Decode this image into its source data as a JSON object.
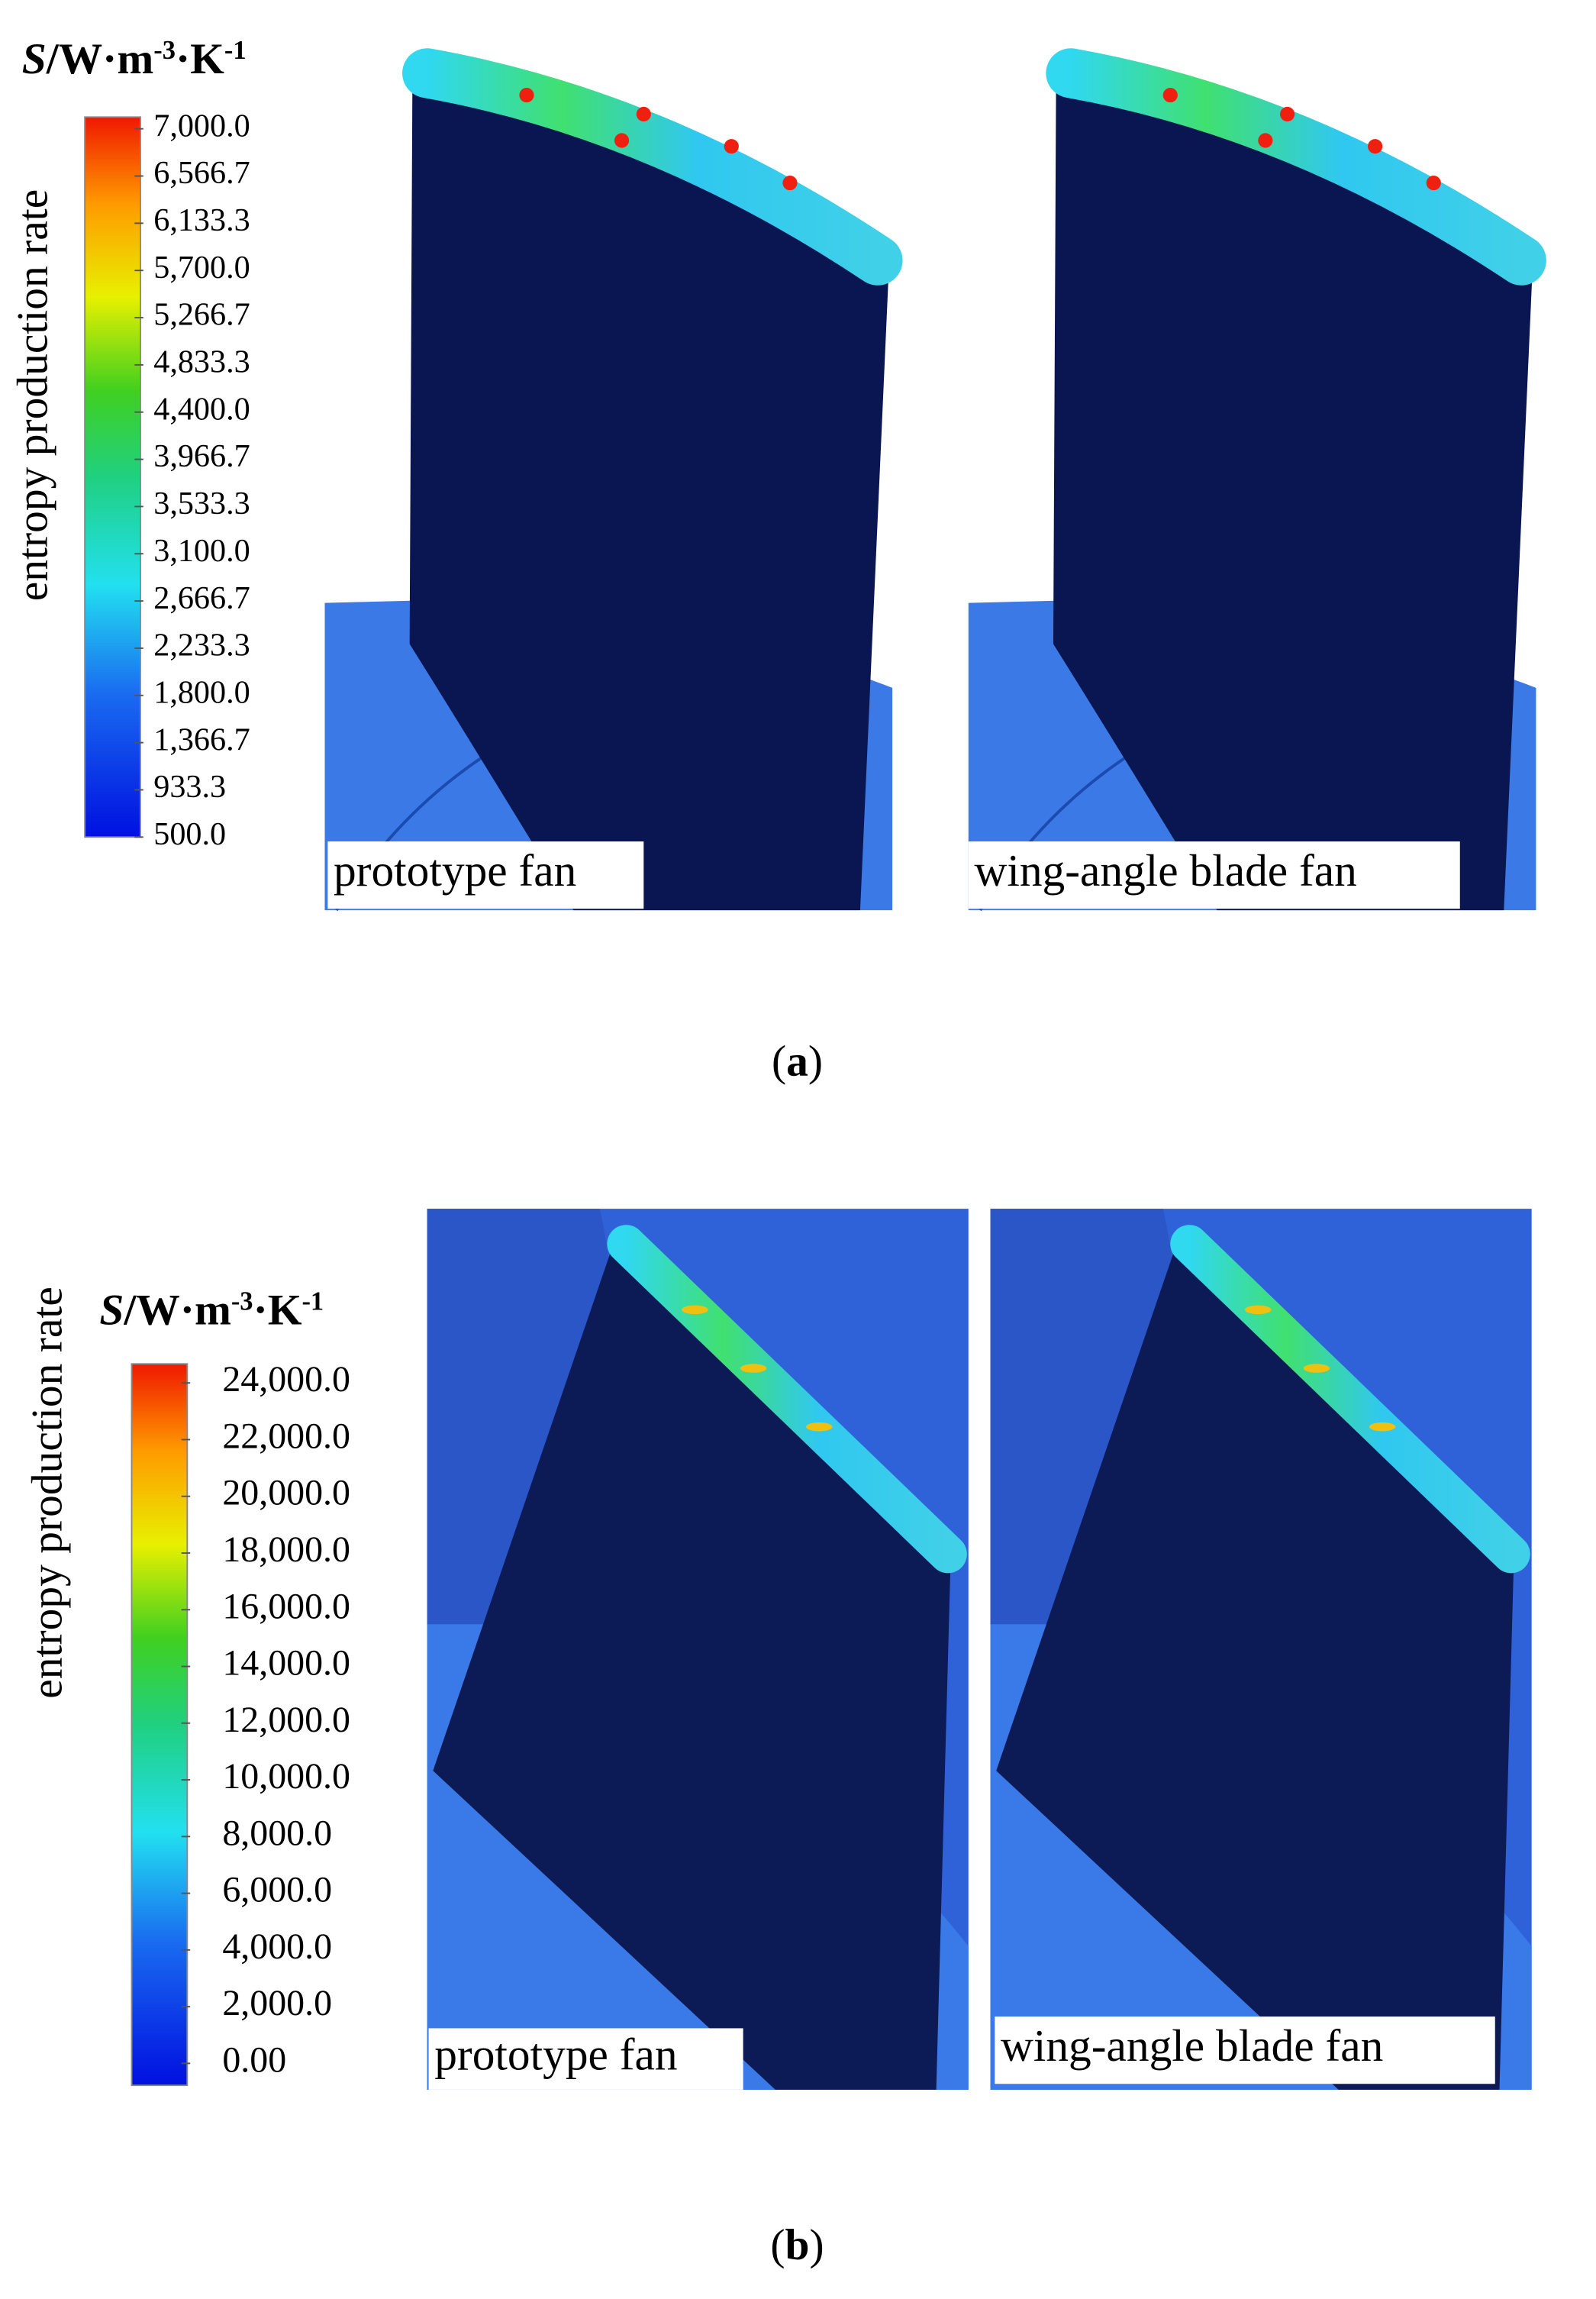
{
  "panels": [
    {
      "unit": [
        "S",
        "/W·m",
        "-3",
        "·K",
        "-1"
      ],
      "axis_label": "entropy production rate",
      "ticks": [
        "7,000.0",
        "6,566.7",
        "6,133.3",
        "5,700.0",
        "5,266.7",
        "4,833.3",
        "4,400.0",
        "3,966.7",
        "3,533.3",
        "3,100.0",
        "2,666.7",
        "2,233.3",
        "1,800.0",
        "1,366.7",
        "933.3",
        "500.0"
      ],
      "captions": [
        "prototype fan",
        "wing-angle blade fan"
      ],
      "label": [
        "(",
        "a",
        ")"
      ]
    },
    {
      "unit": [
        "S",
        "/W·m",
        "-3",
        "·K",
        "-1"
      ],
      "axis_label": "entropy production rate",
      "ticks": [
        "24,000.0",
        "22,000.0",
        "20,000.0",
        "18,000.0",
        "16,000.0",
        "14,000.0",
        "12,000.0",
        "10,000.0",
        "8,000.0",
        "6,000.0",
        "4,000.0",
        "2,000.0",
        "0.00"
      ],
      "captions": [
        "prototype fan",
        "wing-angle blade fan"
      ],
      "label": [
        "(",
        "b",
        ")"
      ]
    }
  ]
}
